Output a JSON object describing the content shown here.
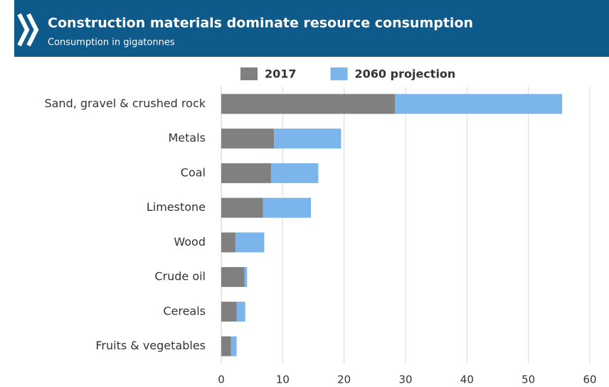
{
  "chart_data": {
    "type": "stacked-barh",
    "title": "Construction materials dominate resource consumption",
    "subtitle": "Consumption in gigatonnes",
    "categories": [
      "Sand, gravel & crushed rock",
      "Metals",
      "Coal",
      "Limestone",
      "Wood",
      "Crude oil",
      "Cereals",
      "Fruits & vegetables"
    ],
    "series": [
      {
        "name": "2017",
        "color": "#808080",
        "values": [
          28.3,
          8.6,
          8.1,
          6.8,
          2.3,
          3.8,
          2.5,
          1.6
        ]
      },
      {
        "name": "2060 projection",
        "color": "#7cb5ec",
        "values": [
          27.2,
          10.9,
          7.7,
          7.8,
          4.7,
          0.4,
          1.4,
          0.9
        ]
      }
    ],
    "xlim": [
      0,
      60
    ],
    "xticks": [
      0,
      10,
      20,
      30,
      40,
      50,
      60
    ],
    "grid": true,
    "legend": "top"
  }
}
